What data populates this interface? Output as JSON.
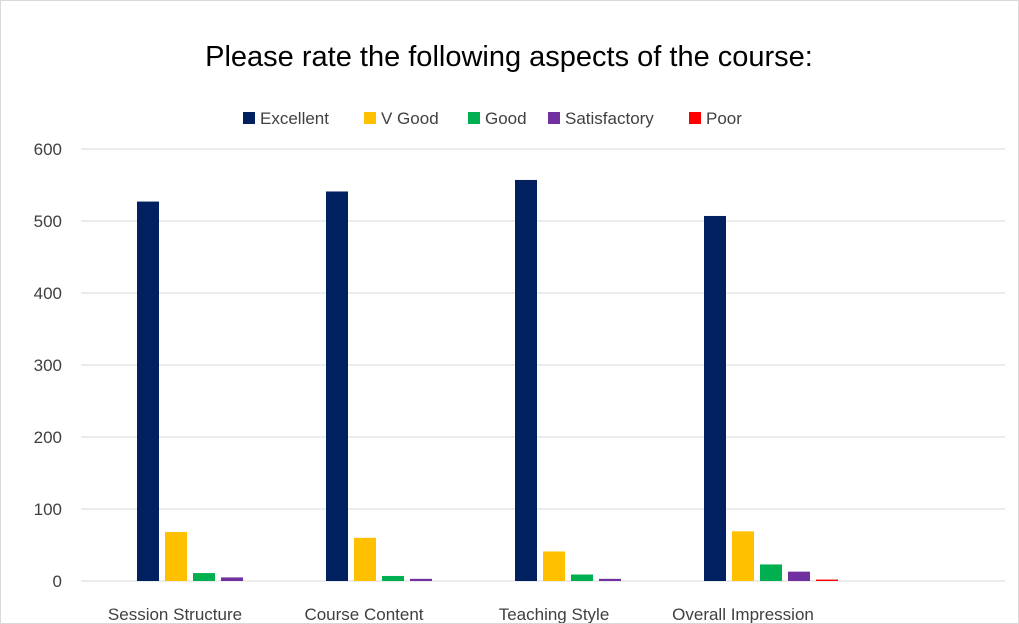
{
  "chart_data": {
    "type": "bar",
    "title": "Please rate the following aspects of the course:",
    "xlabel": "",
    "ylabel": "",
    "ylim": [
      0,
      600
    ],
    "yticks": [
      0,
      100,
      200,
      300,
      400,
      500,
      600
    ],
    "grid": true,
    "legend_position": "top",
    "categories": [
      "Session Structure",
      "Course Content",
      "Teaching Style",
      "Overall Impression"
    ],
    "series": [
      {
        "name": "Excellent",
        "color": "#002060",
        "values": [
          527,
          541,
          557,
          507
        ]
      },
      {
        "name": "V Good",
        "color": "#FFC000",
        "values": [
          68,
          60,
          41,
          69
        ]
      },
      {
        "name": "Good",
        "color": "#00B050",
        "values": [
          11,
          7,
          9,
          23
        ]
      },
      {
        "name": "Satisfactory",
        "color": "#7030A0",
        "values": [
          5,
          3,
          3,
          13
        ]
      },
      {
        "name": "Poor",
        "color": "#FF0000",
        "values": [
          0,
          0,
          0,
          2
        ]
      }
    ]
  }
}
